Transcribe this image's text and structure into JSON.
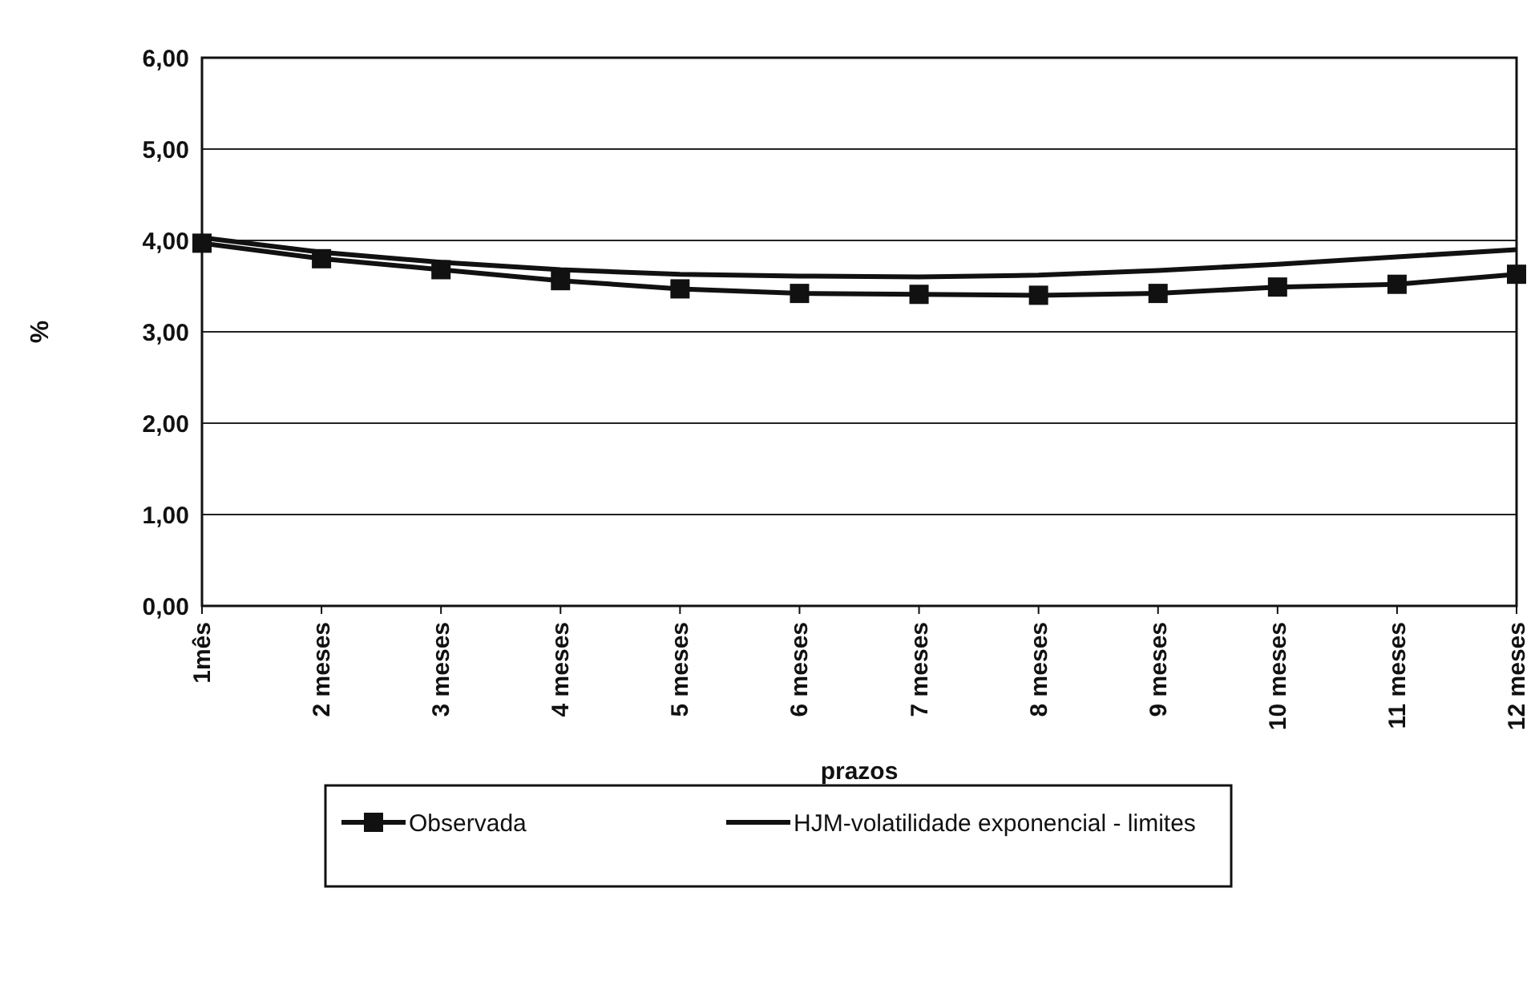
{
  "chart_data": {
    "type": "line",
    "xlabel": "prazos",
    "ylabel": "%",
    "categories": [
      "1mês",
      "2 meses",
      "3 meses",
      "4 meses",
      "5 meses",
      "6 meses",
      "7 meses",
      "8 meses",
      "9 meses",
      "10 meses",
      "11 meses",
      "12 meses"
    ],
    "series": [
      {
        "name": "Observada",
        "color": "#111111",
        "marker": "square",
        "values": [
          3.97,
          3.8,
          3.68,
          3.56,
          3.47,
          3.42,
          3.41,
          3.4,
          3.42,
          3.49,
          3.52,
          3.63
        ]
      },
      {
        "name": "HJM-volatilidade exponencial - limites",
        "color": "#111111",
        "marker": "none",
        "values": [
          4.03,
          3.87,
          3.76,
          3.68,
          3.63,
          3.61,
          3.6,
          3.62,
          3.67,
          3.74,
          3.82,
          3.9
        ]
      }
    ],
    "ylim": [
      0,
      6
    ],
    "yticks": [
      {
        "value": 0,
        "label": "0,00"
      },
      {
        "value": 1,
        "label": "1,00"
      },
      {
        "value": 2,
        "label": "2,00"
      },
      {
        "value": 3,
        "label": "3,00"
      },
      {
        "value": 4,
        "label": "4,00"
      },
      {
        "value": 5,
        "label": "5,00"
      },
      {
        "value": 6,
        "label": "6,00"
      }
    ],
    "grid": "y",
    "legend": "bottom",
    "line_style": "solid"
  }
}
